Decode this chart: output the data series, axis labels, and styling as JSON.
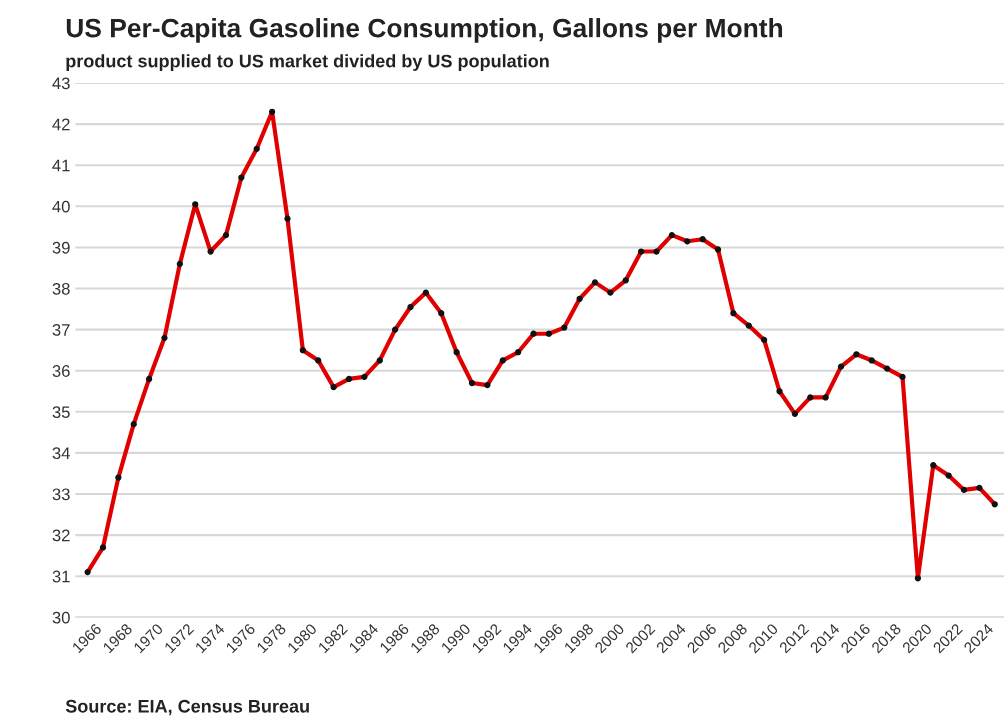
{
  "chart_data": {
    "type": "line",
    "title": "US Per-Capita Gasoline Consumption, Gallons per Month",
    "subtitle": "product supplied to US market divided by US population",
    "x": [
      1966,
      1967,
      1968,
      1969,
      1970,
      1971,
      1972,
      1973,
      1974,
      1975,
      1976,
      1977,
      1978,
      1979,
      1980,
      1981,
      1982,
      1983,
      1984,
      1985,
      1986,
      1987,
      1988,
      1989,
      1990,
      1991,
      1992,
      1993,
      1994,
      1995,
      1996,
      1997,
      1998,
      1999,
      2000,
      2001,
      2002,
      2003,
      2004,
      2005,
      2006,
      2007,
      2008,
      2009,
      2010,
      2011,
      2012,
      2013,
      2014,
      2015,
      2016,
      2017,
      2018,
      2019,
      2020,
      2021,
      2022,
      2023,
      2024,
      2025
    ],
    "series": [
      {
        "color": "#e00000",
        "values": [
          31.1,
          31.7,
          33.4,
          34.7,
          35.8,
          36.8,
          38.6,
          40.05,
          38.9,
          39.3,
          40.7,
          41.4,
          42.3,
          39.7,
          36.5,
          36.25,
          35.6,
          35.8,
          35.85,
          36.25,
          37.0,
          37.55,
          37.9,
          37.4,
          36.45,
          35.7,
          35.65,
          36.25,
          36.45,
          36.9,
          36.9,
          37.05,
          37.75,
          38.15,
          37.9,
          38.2,
          38.9,
          38.9,
          39.3,
          39.15,
          39.2,
          38.95,
          37.4,
          37.1,
          36.75,
          35.5,
          34.95,
          35.35,
          35.35,
          36.1,
          36.4,
          36.25,
          36.05,
          35.85,
          30.95,
          33.7,
          33.45,
          33.1,
          33.15,
          32.75
        ]
      }
    ],
    "xlim": [
      1965.2,
      2025.6
    ],
    "xticks": [
      1966,
      1968,
      1970,
      1972,
      1974,
      1976,
      1978,
      1980,
      1982,
      1984,
      1986,
      1988,
      1990,
      1992,
      1994,
      1996,
      1998,
      2000,
      2002,
      2004,
      2006,
      2008,
      2010,
      2012,
      2014,
      2016,
      2018,
      2020,
      2022,
      2024
    ],
    "ylim": [
      30,
      43
    ],
    "yticks": [
      30,
      31,
      32,
      33,
      34,
      35,
      36,
      37,
      38,
      39,
      40,
      41,
      42,
      43
    ],
    "grid": "y",
    "legend": false,
    "marker": "circle",
    "line_style": "solid",
    "annotations": [
      "Source: EIA, Census Bureau"
    ]
  }
}
